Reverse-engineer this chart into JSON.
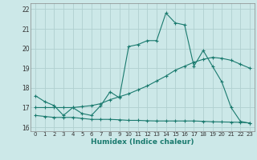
{
  "xlabel": "Humidex (Indice chaleur)",
  "background_color": "#cce8e8",
  "grid_color": "#b0d0d0",
  "line_color": "#1a7a6e",
  "xlim": [
    -0.5,
    23.5
  ],
  "ylim": [
    15.8,
    22.3
  ],
  "xticks": [
    0,
    1,
    2,
    3,
    4,
    5,
    6,
    7,
    8,
    9,
    10,
    11,
    12,
    13,
    14,
    15,
    16,
    17,
    18,
    19,
    20,
    21,
    22,
    23
  ],
  "yticks": [
    16,
    17,
    18,
    19,
    20,
    21,
    22
  ],
  "line1_x": [
    0,
    1,
    2,
    3,
    4,
    5,
    6,
    7,
    8,
    9,
    10,
    11,
    12,
    13,
    14,
    15,
    16,
    17,
    18,
    19,
    20,
    21,
    22,
    23
  ],
  "line1_y": [
    17.6,
    17.3,
    17.1,
    16.6,
    17.0,
    16.7,
    16.6,
    17.1,
    17.8,
    17.5,
    20.1,
    20.2,
    20.4,
    20.4,
    21.8,
    21.3,
    21.2,
    19.1,
    19.9,
    19.1,
    18.3,
    17.0,
    16.3,
    16.2
  ],
  "line2_x": [
    0,
    1,
    2,
    3,
    4,
    5,
    6,
    7,
    8,
    9,
    10,
    11,
    12,
    13,
    14,
    15,
    16,
    17,
    18,
    19,
    20,
    21,
    22,
    23
  ],
  "line2_y": [
    17.0,
    17.0,
    17.0,
    17.0,
    17.0,
    17.05,
    17.1,
    17.2,
    17.4,
    17.55,
    17.7,
    17.9,
    18.1,
    18.35,
    18.6,
    18.9,
    19.1,
    19.3,
    19.45,
    19.55,
    19.5,
    19.4,
    19.2,
    19.0
  ],
  "line3_x": [
    0,
    1,
    2,
    3,
    4,
    5,
    6,
    7,
    8,
    9,
    10,
    11,
    12,
    13,
    14,
    15,
    16,
    17,
    18,
    19,
    20,
    21,
    22,
    23
  ],
  "line3_y": [
    16.6,
    16.55,
    16.5,
    16.5,
    16.5,
    16.45,
    16.4,
    16.4,
    16.4,
    16.38,
    16.35,
    16.35,
    16.33,
    16.32,
    16.32,
    16.32,
    16.32,
    16.32,
    16.3,
    16.28,
    16.27,
    16.26,
    16.25,
    16.22
  ]
}
